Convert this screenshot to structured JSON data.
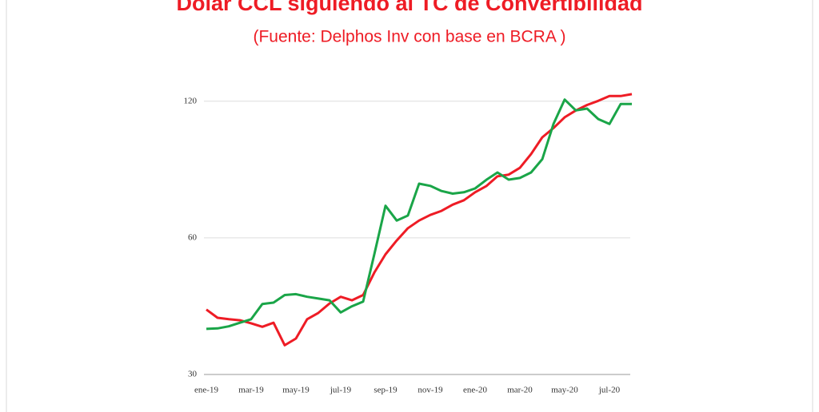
{
  "chart_data": {
    "type": "line",
    "title": "Dolar CCL siguiendo al TC de Convertibilidad",
    "subtitle": "(Fuente: Delphos Inv con base en BCRA )",
    "categories": [
      "ene-19",
      null,
      null,
      null,
      "mar-19",
      null,
      null,
      null,
      "may-19",
      null,
      null,
      null,
      "jul-19",
      null,
      null,
      null,
      "sep-19",
      null,
      null,
      null,
      "nov-19",
      null,
      null,
      null,
      "ene-20",
      null,
      null,
      null,
      "mar-20",
      null,
      null,
      null,
      "may-20",
      null,
      null,
      null,
      "jul-20",
      null,
      null
    ],
    "series": [
      {
        "color": "#ee1c25",
        "values": [
          41.7,
          40.0,
          39.7,
          39.5,
          38.9,
          38.2,
          39.0,
          34.8,
          36.0,
          39.7,
          41.0,
          43.0,
          44.5,
          43.7,
          44.9,
          50.3,
          55.2,
          59.2,
          63.0,
          65.5,
          67.4,
          68.8,
          71.0,
          72.6,
          75.6,
          78.0,
          82.0,
          82.7,
          85.6,
          91.8,
          99.9,
          104.7,
          110.6,
          114.5,
          117.7,
          120.2,
          123.2,
          123.2,
          124.4
        ]
      },
      {
        "color": "#1aa548",
        "values": [
          37.8,
          37.9,
          38.3,
          39.0,
          39.7,
          42.9,
          43.2,
          44.9,
          45.1,
          44.5,
          44.1,
          43.7,
          41.1,
          42.4,
          43.4,
          55.2,
          70.6,
          65.5,
          67.2,
          79.0,
          78.1,
          76.1,
          75.1,
          75.6,
          77.1,
          80.5,
          83.6,
          80.6,
          81.3,
          83.6,
          89.4,
          106.9,
          121.0,
          114.5,
          115.6,
          109.6,
          106.9,
          118.3,
          118.3
        ]
      }
    ],
    "ylim": [
      30,
      130
    ],
    "yticks": [
      30,
      60,
      120
    ],
    "log_scale": true,
    "grid": true
  }
}
